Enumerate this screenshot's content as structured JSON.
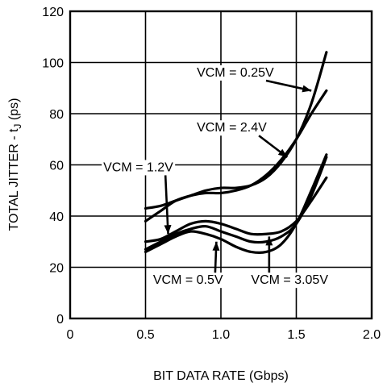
{
  "chart_data": {
    "type": "line",
    "title": "",
    "xlabel": "BIT DATA RATE (Gbps)",
    "ylabel": "TOTAL JITTER - t",
    "ylabel_sub": "J",
    "ylabel_unit": " (ps)",
    "xlim": [
      0,
      2.0
    ],
    "ylim": [
      0,
      120
    ],
    "xticks": [
      0,
      0.5,
      1.0,
      1.5,
      2.0
    ],
    "xtick_labels": [
      "0",
      "0.5",
      "1.0",
      "1.5",
      "2.0"
    ],
    "yticks": [
      0,
      20,
      40,
      60,
      80,
      100,
      120
    ],
    "ytick_labels": [
      "0",
      "20",
      "40",
      "60",
      "80",
      "100",
      "120"
    ],
    "grid": true,
    "legend": "none",
    "series": [
      {
        "name": "VCM = 0.25V",
        "x": [
          0.5,
          0.6,
          0.7,
          0.8,
          0.9,
          1.0,
          1.1,
          1.2,
          1.3,
          1.4,
          1.5,
          1.6,
          1.7
        ],
        "y": [
          43,
          44,
          46,
          48,
          50,
          51,
          51,
          52,
          55,
          61,
          70,
          84,
          104
        ]
      },
      {
        "name": "VCM = 2.4V",
        "x": [
          0.5,
          0.6,
          0.7,
          0.8,
          0.9,
          1.0,
          1.1,
          1.2,
          1.3,
          1.4,
          1.5,
          1.6,
          1.7
        ],
        "y": [
          38,
          42,
          46,
          48,
          49,
          49,
          50,
          52,
          56,
          62,
          70,
          80,
          89
        ]
      },
      {
        "name": "VCM = 1.2V",
        "x": [
          0.5,
          0.6,
          0.7,
          0.8,
          0.9,
          1.0,
          1.1,
          1.2,
          1.3,
          1.4,
          1.5,
          1.6,
          1.7
        ],
        "y": [
          30,
          31,
          34,
          37,
          38,
          37,
          35,
          33,
          33,
          34,
          38,
          46,
          55
        ]
      },
      {
        "name": "VCM = 0.5V",
        "x": [
          0.5,
          0.6,
          0.7,
          0.8,
          0.9,
          1.0,
          1.1,
          1.2,
          1.3,
          1.4,
          1.5,
          1.6,
          1.7
        ],
        "y": [
          26,
          29,
          32,
          34,
          33,
          31,
          28,
          26,
          26,
          29,
          37,
          50,
          64
        ]
      },
      {
        "name": "VCM = 3.05V",
        "x": [
          0.5,
          0.6,
          0.7,
          0.8,
          0.9,
          1.0,
          1.1,
          1.2,
          1.3,
          1.4,
          1.5,
          1.6,
          1.7
        ],
        "y": [
          27,
          30,
          33,
          35,
          36,
          34,
          32,
          30,
          30,
          32,
          37,
          48,
          63
        ]
      }
    ],
    "annotations": [
      {
        "text": "VCM = 0.25V",
        "series": "VCM = 0.25V",
        "label_at": [
          0.84,
          94.5
        ],
        "points_to": [
          1.6,
          89
        ]
      },
      {
        "text": "VCM = 2.4V",
        "series": "VCM = 2.4V",
        "label_at": [
          0.84,
          73
        ],
        "points_to": [
          1.44,
          63
        ]
      },
      {
        "text": "VCM = 1.2V",
        "series": "VCM = 1.2V",
        "label_at": [
          0.22,
          57.5
        ],
        "points_to": [
          0.65,
          33
        ]
      },
      {
        "text": "VCM = 0.5V",
        "series": "VCM = 0.5V",
        "label_at": [
          0.55,
          13.5
        ],
        "points_to": [
          0.97,
          30
        ]
      },
      {
        "text": "VCM = 3.05V",
        "series": "VCM = 3.05V",
        "label_at": [
          1.2,
          13.5
        ],
        "points_to": [
          1.32,
          32
        ]
      }
    ]
  }
}
